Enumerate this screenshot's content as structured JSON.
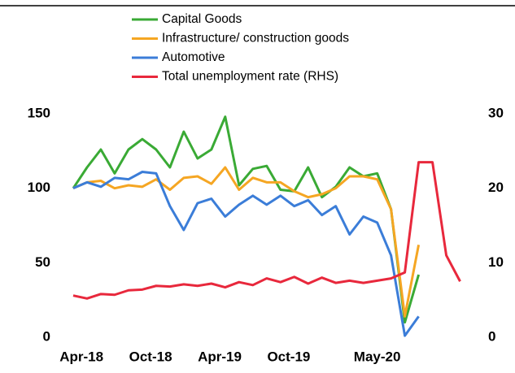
{
  "chart_data": {
    "type": "line",
    "x": [
      0,
      1,
      2,
      3,
      4,
      5,
      6,
      7,
      8,
      9,
      10,
      11,
      12,
      13,
      14,
      15,
      16,
      17,
      18,
      19,
      20,
      21,
      22,
      23,
      24,
      25,
      26,
      27,
      28
    ],
    "xlim": [
      -1,
      29.5
    ],
    "xticks": [
      {
        "value": 0.6,
        "label": "Apr-18"
      },
      {
        "value": 5.6,
        "label": "Oct-18"
      },
      {
        "value": 10.6,
        "label": "Apr-19"
      },
      {
        "value": 15.6,
        "label": "Oct-19"
      },
      {
        "value": 22,
        "label": "May-20"
      }
    ],
    "ylim": [
      0,
      150
    ],
    "yticks": [
      0,
      50,
      100,
      150
    ],
    "y2lim": [
      0,
      30
    ],
    "y2ticks": [
      0,
      10,
      20,
      30
    ],
    "series": [
      {
        "name": "Capital Goods",
        "color": "#3aaa35",
        "values": [
          100,
          114,
          126,
          110,
          126,
          133,
          126,
          114,
          138,
          120,
          126,
          148,
          102,
          113,
          115,
          99,
          98,
          114,
          94,
          101,
          114,
          108,
          110,
          86,
          10,
          42,
          null,
          null,
          null
        ]
      },
      {
        "name": "Infrastructure/ construction goods",
        "color": "#f5a623",
        "values": [
          100,
          104,
          105,
          100,
          102,
          101,
          106,
          99,
          107,
          108,
          103,
          114,
          99,
          107,
          104,
          104,
          98,
          94,
          96,
          100,
          108,
          108,
          106,
          86,
          14,
          62,
          null,
          null,
          null
        ]
      },
      {
        "name": "Automotive",
        "color": "#3b7dd8",
        "values": [
          100,
          104,
          101,
          107,
          106,
          111,
          110,
          88,
          72,
          90,
          93,
          81,
          89,
          95,
          89,
          95,
          88,
          92,
          82,
          88,
          69,
          81,
          77,
          55,
          1,
          14,
          null,
          null,
          null
        ]
      },
      {
        "name": "Total unemployment rate (RHS)",
        "color": "#e8283c",
        "axis": "y2",
        "values": [
          5.6,
          5.2,
          5.8,
          5.7,
          6.3,
          6.4,
          6.9,
          6.8,
          7.1,
          6.9,
          7.2,
          6.7,
          7.4,
          7.0,
          7.9,
          7.4,
          8.1,
          7.2,
          8.0,
          7.3,
          7.6,
          7.3,
          7.6,
          7.9,
          8.7,
          23.5,
          23.5,
          11,
          7.5
        ]
      }
    ]
  }
}
